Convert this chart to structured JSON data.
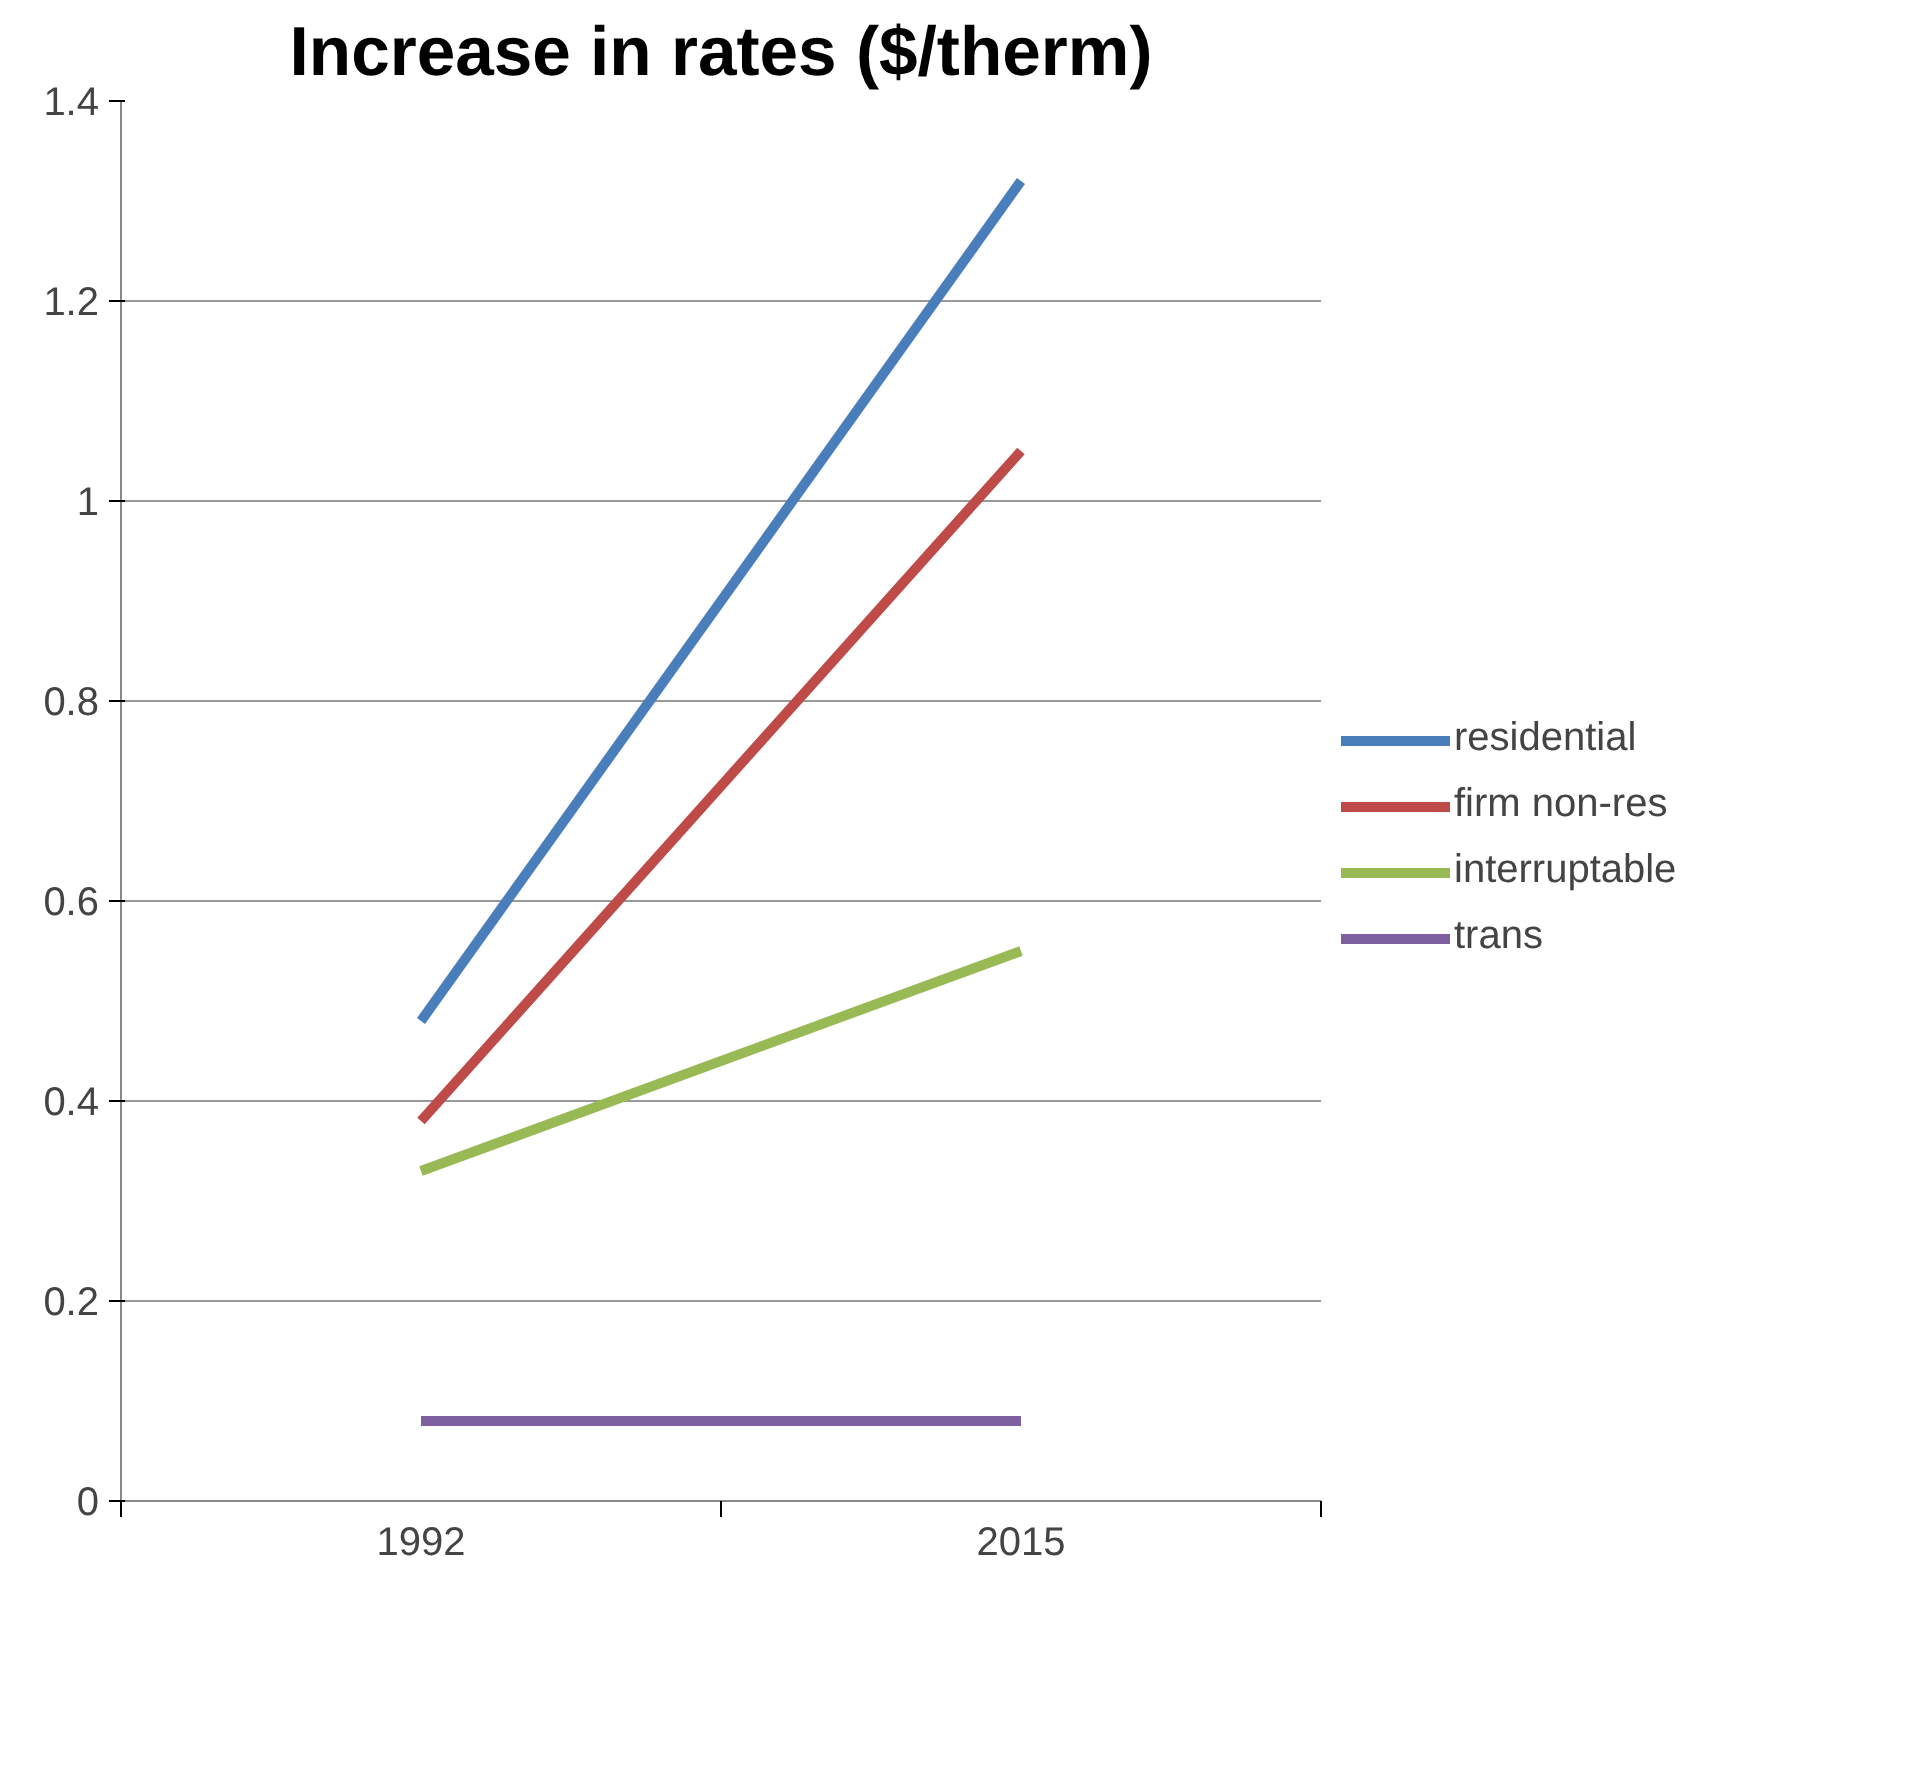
{
  "chart_data": {
    "type": "line",
    "title": "Increase in rates ($/therm)",
    "categories": [
      "1992",
      "2015"
    ],
    "series": [
      {
        "name": "residential",
        "color": "#4a7ebb",
        "values": [
          0.48,
          1.32
        ]
      },
      {
        "name": "firm non-res",
        "color": "#be4b48",
        "values": [
          0.38,
          1.05
        ]
      },
      {
        "name": "interruptable",
        "color": "#98b954",
        "values": [
          0.33,
          0.55
        ]
      },
      {
        "name": "trans",
        "color": "#7d60a0",
        "values": [
          0.08,
          0.08
        ]
      }
    ],
    "ylim": [
      0,
      1.4
    ],
    "yticks": [
      0,
      0.2,
      0.4,
      0.6,
      0.8,
      1,
      1.2,
      1.4
    ],
    "grid": "y",
    "legend": "right",
    "marker": "none",
    "line_style": "solid"
  }
}
